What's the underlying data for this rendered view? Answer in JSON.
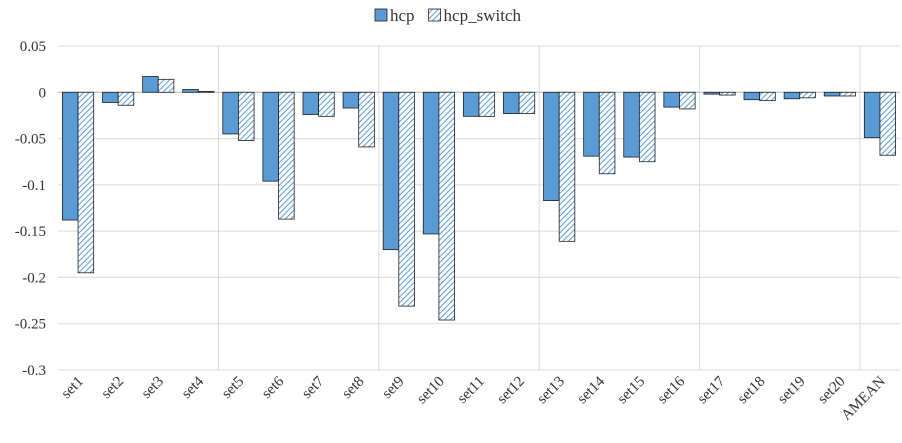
{
  "chart_data": {
    "type": "bar",
    "categories": [
      "set1",
      "set2",
      "set3",
      "set4",
      "set5",
      "set6",
      "set7",
      "set8",
      "set9",
      "set10",
      "set11",
      "set12",
      "set13",
      "set14",
      "set15",
      "set16",
      "set17",
      "set18",
      "set19",
      "set20",
      "AMEAN"
    ],
    "series": [
      {
        "name": "hcp",
        "color": "#5b9bd5",
        "hatch": false,
        "values": [
          -0.138,
          -0.011,
          0.017,
          0.003,
          -0.045,
          -0.096,
          -0.024,
          -0.017,
          -0.17,
          -0.153,
          -0.026,
          -0.023,
          -0.117,
          -0.069,
          -0.07,
          -0.016,
          -0.002,
          -0.008,
          -0.007,
          -0.004,
          -0.049
        ]
      },
      {
        "name": "hcp_switch",
        "color": "#5b9bd5",
        "hatch": true,
        "values": [
          -0.195,
          -0.014,
          0.014,
          0.001,
          -0.052,
          -0.137,
          -0.026,
          -0.059,
          -0.231,
          -0.246,
          -0.026,
          -0.023,
          -0.161,
          -0.088,
          -0.075,
          -0.018,
          -0.003,
          -0.009,
          -0.006,
          -0.004,
          -0.068
        ]
      }
    ],
    "ylim": [
      -0.3,
      0.05
    ],
    "yticks": [
      0.05,
      0,
      -0.05,
      -0.1,
      -0.15,
      -0.2,
      -0.25,
      -0.3
    ],
    "grid": true,
    "legend": "top"
  }
}
